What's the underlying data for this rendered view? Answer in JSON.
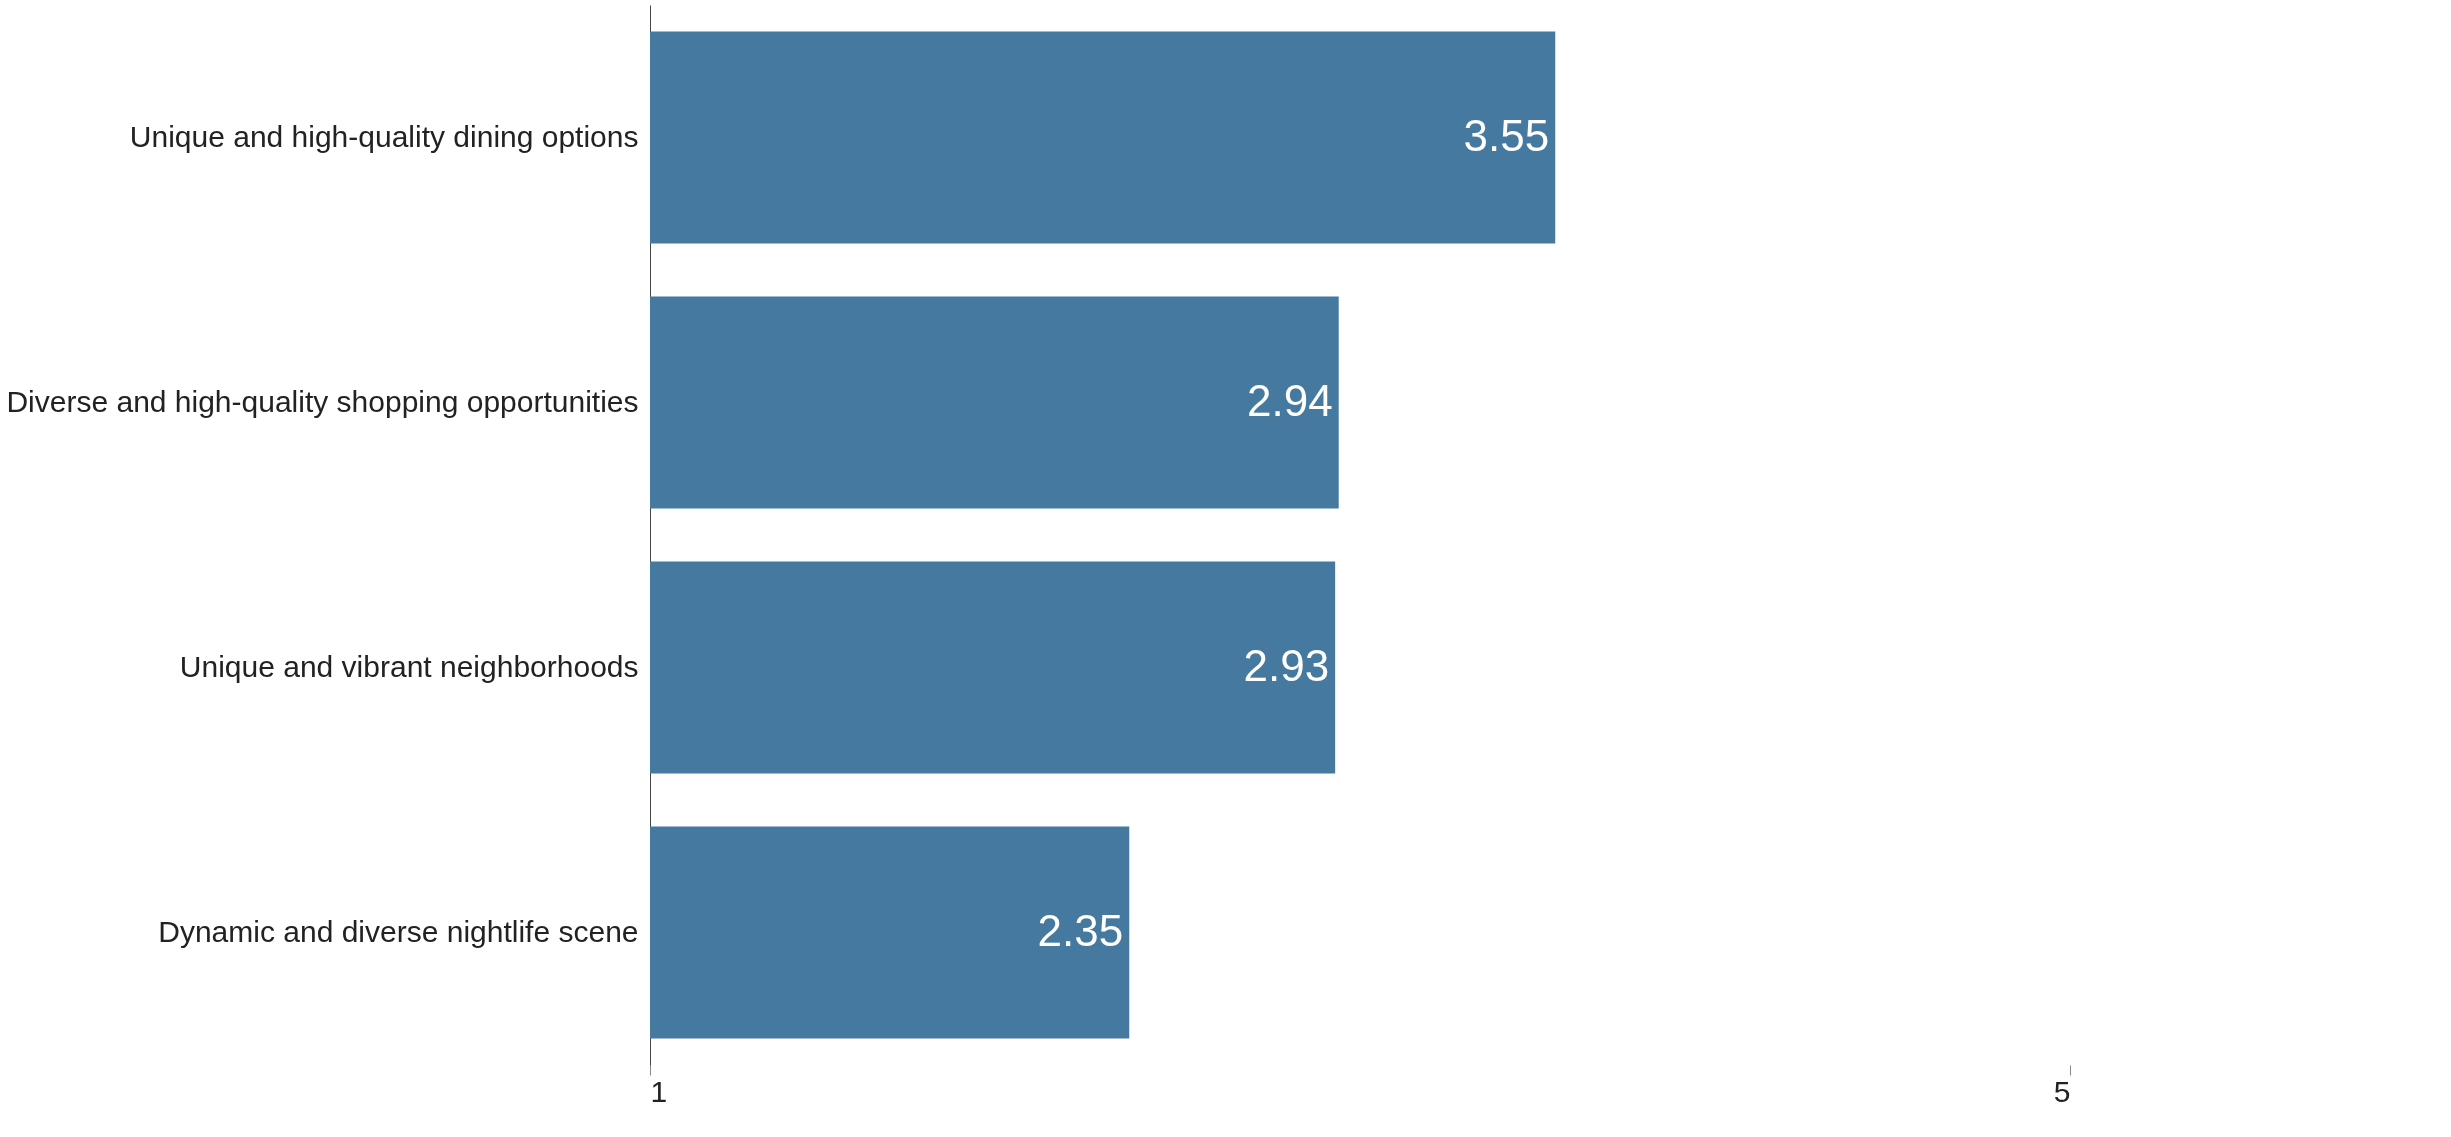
{
  "chart_data": {
    "type": "bar",
    "orientation": "horizontal",
    "categories": [
      "Unique and high-quality dining options",
      "Diverse and high-quality shopping opportunities",
      "Unique and vibrant neighborhoods",
      "Dynamic and diverse nightlife scene"
    ],
    "values": [
      3.55,
      2.94,
      2.93,
      2.35
    ],
    "color": "#45799f",
    "xlim": [
      1,
      5
    ],
    "xticks": [
      1,
      5
    ],
    "data_labels": true,
    "grid": false
  }
}
